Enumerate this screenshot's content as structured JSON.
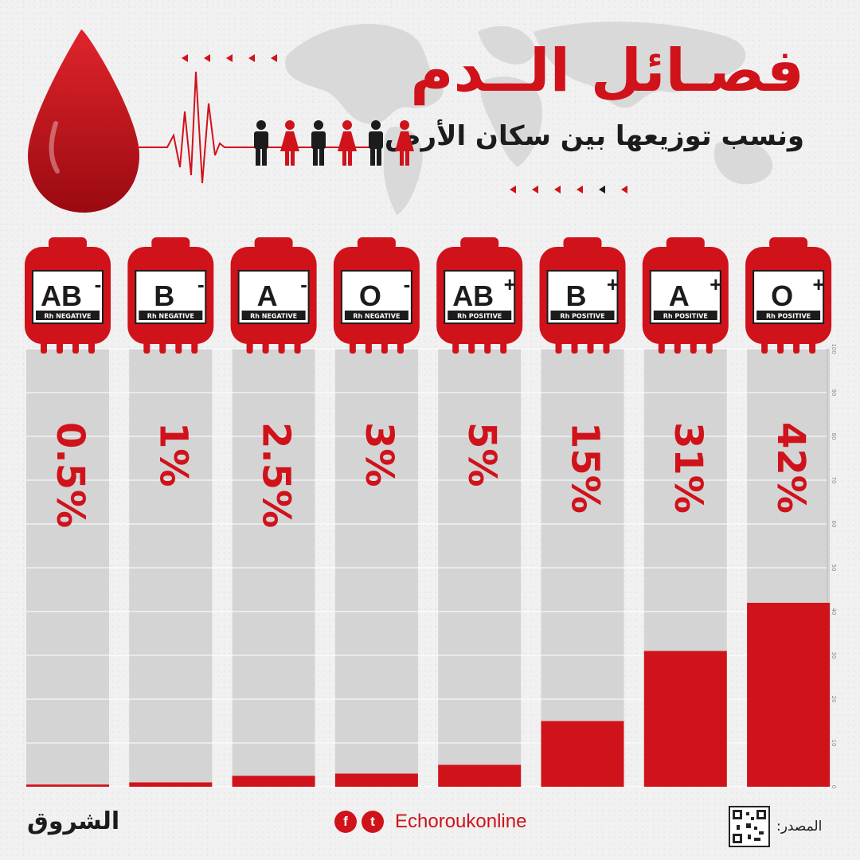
{
  "header": {
    "title": "فصـائل الــدم",
    "subtitle": "ونسب توزيعها بين سكان الأرض"
  },
  "colors": {
    "accent": "#d0121b",
    "bar_bg": "#d4d4d4",
    "bag": "#d0121b",
    "dark": "#1c1c1c"
  },
  "footer": {
    "logo": "الشروق",
    "social_handle": "Echoroukonline",
    "facebook_icon": "facebook-icon",
    "twitter_icon": "twitter-icon",
    "source_label": "المصدر:"
  },
  "chart_data": {
    "type": "bar",
    "categories": [
      "AB-",
      "B-",
      "A-",
      "O-",
      "AB+",
      "B+",
      "A+",
      "O+"
    ],
    "category_groups": [
      "AB",
      "B",
      "A",
      "O",
      "AB",
      "B",
      "A",
      "O"
    ],
    "category_signs": [
      "-",
      "-",
      "-",
      "-",
      "+",
      "+",
      "+",
      "+"
    ],
    "rh_labels": [
      "Rh NEGATIVE",
      "Rh NEGATIVE",
      "Rh NEGATIVE",
      "Rh NEGATIVE",
      "Rh POSITIVE",
      "Rh POSITIVE",
      "Rh POSITIVE",
      "Rh POSITIVE"
    ],
    "values": [
      0.5,
      1,
      2.5,
      3,
      5,
      15,
      31,
      42
    ],
    "value_labels": [
      "0.5%",
      "1%",
      "2.5%",
      "3%",
      "5%",
      "15%",
      "31%",
      "42%"
    ],
    "ylim": [
      0,
      100
    ],
    "y_ticks": [
      0,
      10,
      20,
      30,
      40,
      50,
      60,
      70,
      80,
      90,
      100
    ],
    "grid": true,
    "axis_side": "right"
  }
}
